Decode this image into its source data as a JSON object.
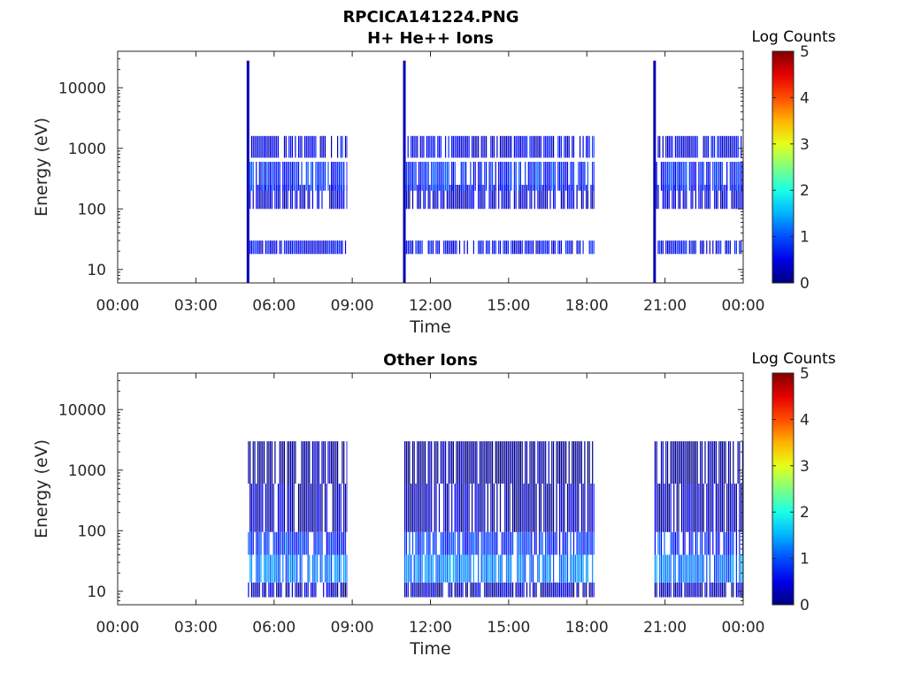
{
  "figure_title": "RPCICA141224.PNG",
  "chart_data": [
    {
      "type": "heatmap",
      "title": "H+ He++ Ions",
      "xlabel": "Time",
      "ylabel": "Energy (eV)",
      "x_ticks": [
        "00:00",
        "03:00",
        "06:00",
        "09:00",
        "12:00",
        "15:00",
        "18:00",
        "21:00",
        "00:00"
      ],
      "x_range_hours": [
        0,
        24
      ],
      "y_scale": "log",
      "y_range": [
        6,
        40000
      ],
      "y_ticks": [
        10,
        100,
        1000,
        10000
      ],
      "colorbar": {
        "label": "Log Counts",
        "range": [
          0,
          5
        ],
        "ticks": [
          0,
          1,
          2,
          3,
          4,
          5
        ],
        "colormap": "jet"
      },
      "data_intervals_hours": [
        [
          5.0,
          8.8
        ],
        [
          11.0,
          18.3
        ],
        [
          20.6,
          24.0
        ]
      ],
      "spikes_hours": [
        5.0,
        11.0,
        20.6
      ],
      "spike_max_energy_ev": 28000,
      "bands": [
        {
          "energy_ev": [
            18,
            30
          ],
          "log_counts": 0.6
        },
        {
          "energy_ev": [
            100,
            250
          ],
          "log_counts": 0.4
        },
        {
          "energy_ev": [
            200,
            600
          ],
          "log_counts": 0.8
        },
        {
          "energy_ev": [
            700,
            1600
          ],
          "log_counts": 0.5
        }
      ]
    },
    {
      "type": "heatmap",
      "title": "Other Ions",
      "xlabel": "Time",
      "ylabel": "Energy (eV)",
      "x_ticks": [
        "00:00",
        "03:00",
        "06:00",
        "09:00",
        "12:00",
        "15:00",
        "18:00",
        "21:00",
        "00:00"
      ],
      "x_range_hours": [
        0,
        24
      ],
      "y_scale": "log",
      "y_range": [
        6,
        40000
      ],
      "y_ticks": [
        10,
        100,
        1000,
        10000
      ],
      "colorbar": {
        "label": "Log Counts",
        "range": [
          0,
          5
        ],
        "ticks": [
          0,
          1,
          2,
          3,
          4,
          5
        ],
        "colormap": "jet"
      },
      "data_intervals_hours": [
        [
          5.0,
          8.8
        ],
        [
          11.0,
          18.3
        ],
        [
          20.6,
          24.0
        ]
      ],
      "bands": [
        {
          "energy_ev": [
            8,
            14
          ],
          "log_counts": 0.3
        },
        {
          "energy_ev": [
            14,
            40
          ],
          "log_counts": 1.2
        },
        {
          "energy_ev": [
            40,
            95
          ],
          "log_counts": 0.8
        },
        {
          "energy_ev": [
            95,
            600
          ],
          "log_counts": 0.3
        },
        {
          "energy_ev": [
            600,
            3000
          ],
          "log_counts": 0.1
        }
      ]
    }
  ]
}
